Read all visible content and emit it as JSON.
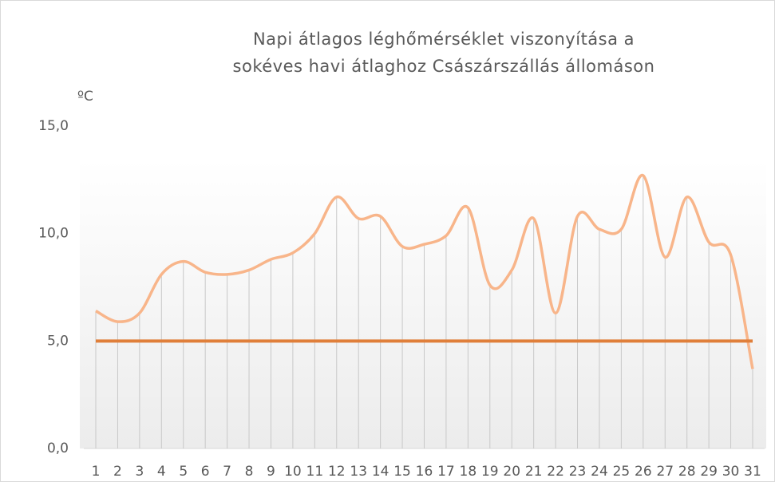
{
  "chart_data": {
    "type": "line",
    "title": [
      "Napi átlagos léghőmérséklet viszonyítása  a",
      "sokéves havi  átlaghoz Császárszállás állomáson"
    ],
    "y_axis_label": "ºC",
    "categories": [
      "1",
      "2",
      "3",
      "4",
      "5",
      "6",
      "7",
      "8",
      "9",
      "10",
      "11",
      "12",
      "13",
      "14",
      "15",
      "16",
      "17",
      "18",
      "19",
      "20",
      "21",
      "22",
      "23",
      "24",
      "25",
      "26",
      "27",
      "28",
      "29",
      "30",
      "31"
    ],
    "series": [
      {
        "color": "#f8b58a",
        "smooth": true,
        "drop_lines": true,
        "values": [
          6.4,
          5.9,
          6.3,
          8.1,
          8.7,
          8.2,
          8.1,
          8.3,
          8.8,
          9.1,
          10.0,
          11.7,
          10.7,
          10.8,
          9.4,
          9.5,
          9.9,
          11.2,
          7.6,
          8.3,
          10.7,
          6.3,
          10.8,
          10.2,
          10.2,
          12.7,
          8.9,
          11.7,
          9.6,
          9.0,
          3.7
        ]
      },
      {
        "color": "#e07f3a",
        "smooth": false,
        "drop_lines": false,
        "values": [
          5,
          5,
          5,
          5,
          5,
          5,
          5,
          5,
          5,
          5,
          5,
          5,
          5,
          5,
          5,
          5,
          5,
          5,
          5,
          5,
          5,
          5,
          5,
          5,
          5,
          5,
          5,
          5,
          5,
          5,
          5
        ]
      }
    ],
    "ylim": [
      0,
      15
    ],
    "yticks": [
      {
        "value": 0,
        "label": "0,0"
      },
      {
        "value": 5,
        "label": "5,0"
      },
      {
        "value": 10,
        "label": "10,0"
      },
      {
        "value": 15,
        "label": "15,0"
      }
    ]
  }
}
